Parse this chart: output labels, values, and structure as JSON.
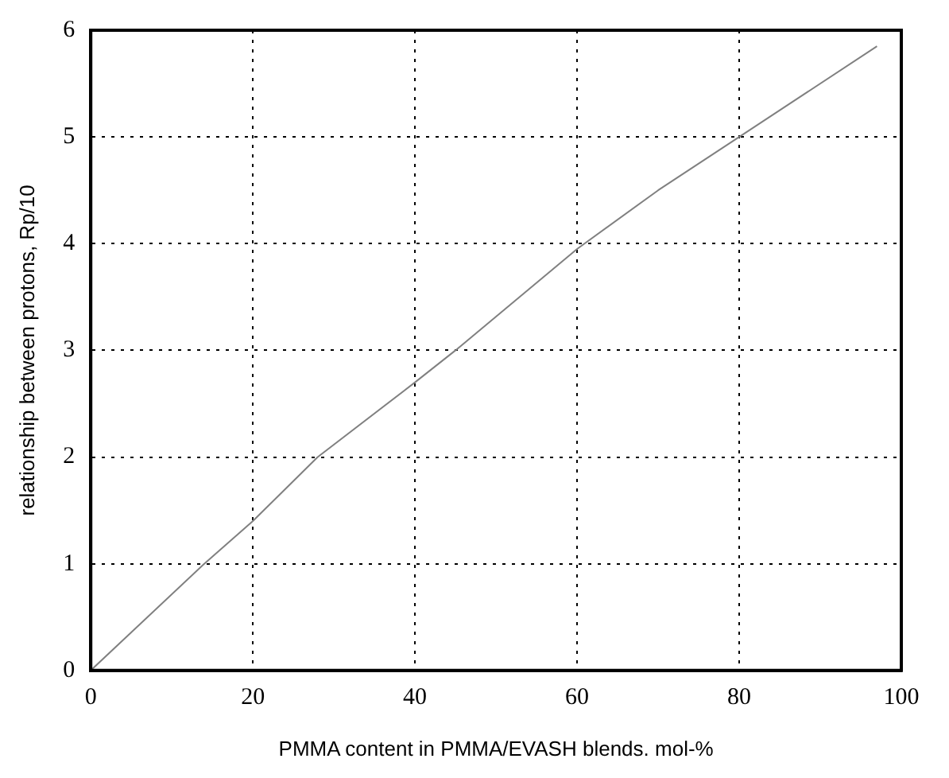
{
  "chart_data": {
    "type": "line",
    "xlabel": "PMMA content in PMMA/EVASH blends. mol-%",
    "ylabel": "relationship between protons, Rp/10",
    "x": [
      0,
      14,
      20,
      28,
      40,
      45,
      60,
      70,
      80,
      97
    ],
    "series": [
      {
        "color": "#808080",
        "values": [
          0,
          1,
          1.4,
          2,
          2.7,
          3,
          3.95,
          4.5,
          5,
          5.85
        ]
      }
    ],
    "xlim": [
      0,
      100
    ],
    "xticks": [
      0,
      20,
      40,
      60,
      80,
      100
    ],
    "ylim": [
      0,
      6
    ],
    "yticks": [
      0,
      1,
      2,
      3,
      4,
      5,
      6
    ],
    "grid": true,
    "marker": "none",
    "line_style": "solid"
  }
}
